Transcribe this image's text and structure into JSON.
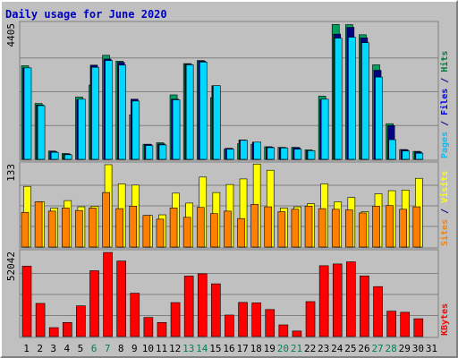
{
  "chart_data": {
    "type": "bar",
    "title": "Daily usage for June 2020",
    "categories": [
      "1",
      "2",
      "3",
      "4",
      "5",
      "6",
      "7",
      "8",
      "9",
      "10",
      "11",
      "12",
      "13",
      "14",
      "15",
      "16",
      "17",
      "18",
      "19",
      "20",
      "21",
      "22",
      "23",
      "24",
      "25",
      "26",
      "27",
      "28",
      "29",
      "30",
      "31"
    ],
    "weekend_days": [
      6,
      7,
      13,
      14,
      20,
      21,
      27,
      28
    ],
    "panels": [
      {
        "id": "top",
        "max_label": "4405",
        "max": 4405,
        "right_label": [
          {
            "text": "Pages",
            "color": "#00c0ff"
          },
          {
            "text": " / ",
            "color": "#000080"
          },
          {
            "text": "Files",
            "color": "#0000ff"
          },
          {
            "text": " / ",
            "color": "#000080"
          },
          {
            "text": "Hits",
            "color": "#008040"
          }
        ],
        "series": [
          {
            "name": "Hits",
            "color": "#00a060",
            "values": [
              3050,
              1820,
              270,
              190,
              2030,
              2420,
              3390,
              3200,
              1450,
              490,
              540,
              2100,
              3120,
              3220,
              2010,
              330,
              510,
              490,
              410,
              390,
              390,
              310,
              2060,
              4395,
              4390,
              4060,
              3080,
              1160,
              320,
              260,
              null
            ]
          },
          {
            "name": "Files",
            "color": "#000080",
            "values": [
              2980,
              1770,
              250,
              170,
              1950,
              3070,
              3270,
              3160,
              1960,
              490,
              500,
              1960,
              3100,
              3200,
              2400,
              360,
              630,
              560,
              400,
              380,
              380,
              280,
              1950,
              4080,
              4300,
              3960,
              2900,
              1100,
              310,
              240,
              null
            ]
          },
          {
            "name": "Pages",
            "color": "#00d8ff",
            "values": [
              2980,
              1750,
              230,
              150,
              1960,
              3000,
              3220,
              3070,
              1900,
              450,
              470,
              1940,
              3080,
              3170,
              2400,
              330,
              620,
              560,
              380,
              370,
              330,
              280,
              1960,
              3950,
              3980,
              3800,
              2680,
              640,
              270,
              200,
              null
            ]
          }
        ]
      },
      {
        "id": "middle",
        "max_label": "133",
        "max": 133,
        "right_label": [
          {
            "text": "Sites",
            "color": "#ff8000"
          },
          {
            "text": " / ",
            "color": "#000080"
          },
          {
            "text": "Visits",
            "color": "#ffff00"
          }
        ],
        "series": [
          {
            "name": "Visits",
            "color": "#ffff00",
            "values": [
              98,
              73,
              63,
              75,
              65,
              66,
              133,
              102,
              100,
              51,
              52,
              87,
              71,
              113,
              88,
              101,
              110,
              134,
              124,
              63,
              65,
              70,
              102,
              73,
              80,
              57,
              86,
              91,
              92,
              111,
              null
            ]
          },
          {
            "name": "Sites",
            "color": "#ff8000",
            "values": [
              56,
              73,
              58,
              63,
              59,
              63,
              88,
              62,
              66,
              51,
              45,
              63,
              48,
              64,
              54,
              58,
              46,
              69,
              65,
              57,
              61,
              66,
              62,
              61,
              60,
              55,
              66,
              67,
              61,
              65,
              null
            ]
          }
        ]
      },
      {
        "id": "bottom",
        "max_label": "52042",
        "max": 52042,
        "right_label": [
          {
            "text": "KBytes",
            "color": "#ff0000"
          }
        ],
        "series": [
          {
            "name": "KBytes",
            "color": "#ff0000",
            "values": [
              43500,
              20500,
              5500,
              8700,
              19000,
              40700,
              52000,
              46700,
              26800,
              11800,
              8700,
              21000,
              37400,
              38800,
              32600,
              13300,
              21100,
              20800,
              16700,
              7200,
              3400,
              21600,
              43800,
              44900,
              46200,
              37500,
              30900,
              15700,
              15000,
              11000,
              null
            ]
          }
        ]
      }
    ]
  }
}
